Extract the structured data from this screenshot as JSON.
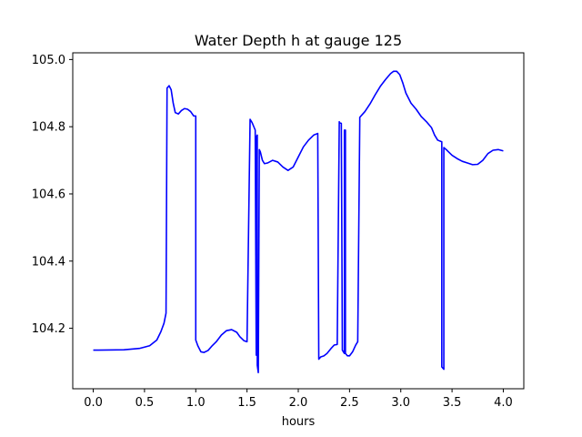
{
  "chart_data": {
    "type": "line",
    "title": "Water Depth h at gauge 125",
    "xlabel": "hours",
    "ylabel": "",
    "xlim": [
      -0.2,
      4.2
    ],
    "ylim": [
      104.02,
      105.02
    ],
    "xticks": [
      0.0,
      0.5,
      1.0,
      1.5,
      2.0,
      2.5,
      3.0,
      3.5,
      4.0
    ],
    "xtick_labels": [
      "0.0",
      "0.5",
      "1.0",
      "1.5",
      "2.0",
      "2.5",
      "3.0",
      "3.5",
      "4.0"
    ],
    "yticks": [
      104.2,
      104.4,
      104.6,
      104.8,
      105.0
    ],
    "ytick_labels": [
      "104.2",
      "104.4",
      "104.6",
      "104.8",
      "105.0"
    ],
    "grid": false,
    "series": [
      {
        "color": "#0000ff",
        "x": [
          0.0,
          0.05,
          0.3,
          0.45,
          0.55,
          0.62,
          0.66,
          0.69,
          0.71,
          0.72,
          0.72,
          0.74,
          0.76,
          0.78,
          0.8,
          0.83,
          0.86,
          0.89,
          0.92,
          0.95,
          0.98,
          1.0,
          1.0,
          1.02,
          1.05,
          1.08,
          1.12,
          1.16,
          1.2,
          1.25,
          1.3,
          1.35,
          1.4,
          1.43,
          1.47,
          1.5,
          1.53,
          1.53,
          1.55,
          1.58,
          1.59,
          1.59,
          1.6,
          1.6,
          1.61,
          1.62,
          1.63,
          1.65,
          1.67,
          1.7,
          1.75,
          1.8,
          1.85,
          1.9,
          1.95,
          2.0,
          2.05,
          2.1,
          2.15,
          2.19,
          2.2,
          2.22,
          2.25,
          2.28,
          2.32,
          2.35,
          2.38,
          2.4,
          2.4,
          2.42,
          2.43,
          2.44,
          2.45,
          2.45,
          2.46,
          2.46,
          2.48,
          2.5,
          2.53,
          2.56,
          2.58,
          2.6,
          2.6,
          2.65,
          2.7,
          2.75,
          2.8,
          2.85,
          2.9,
          2.93,
          2.96,
          2.99,
          3.02,
          3.05,
          3.1,
          3.15,
          3.2,
          3.25,
          3.3,
          3.33,
          3.36,
          3.4,
          3.4,
          3.42,
          3.42,
          3.45,
          3.5,
          3.55,
          3.6,
          3.65,
          3.7,
          3.75,
          3.8,
          3.85,
          3.9,
          3.95,
          4.0
        ],
        "y": [
          104.135,
          104.135,
          104.136,
          104.14,
          104.148,
          104.165,
          104.19,
          104.215,
          104.245,
          104.915,
          104.915,
          104.922,
          104.91,
          104.87,
          104.842,
          104.838,
          104.848,
          104.854,
          104.852,
          104.845,
          104.832,
          104.832,
          104.165,
          104.148,
          104.13,
          104.128,
          104.134,
          104.148,
          104.16,
          104.18,
          104.193,
          104.196,
          104.188,
          104.175,
          104.163,
          104.16,
          104.822,
          104.822,
          104.812,
          104.79,
          104.12,
          104.77,
          104.775,
          104.09,
          104.068,
          104.732,
          104.725,
          104.7,
          104.69,
          104.692,
          104.7,
          104.695,
          104.68,
          104.67,
          104.68,
          104.71,
          104.74,
          104.76,
          104.775,
          104.78,
          104.108,
          104.115,
          104.118,
          104.125,
          104.14,
          104.15,
          104.152,
          104.815,
          104.812,
          104.81,
          104.135,
          104.13,
          104.125,
          104.79,
          104.79,
          104.125,
          104.118,
          104.118,
          104.13,
          104.15,
          104.16,
          104.82,
          104.828,
          104.845,
          104.868,
          104.895,
          104.92,
          104.94,
          104.958,
          104.965,
          104.965,
          104.955,
          104.93,
          104.9,
          104.87,
          104.852,
          104.83,
          104.815,
          104.797,
          104.775,
          104.76,
          104.755,
          104.085,
          104.078,
          104.738,
          104.73,
          104.715,
          104.705,
          104.697,
          104.692,
          104.687,
          104.688,
          104.7,
          104.72,
          104.73,
          104.732,
          104.728
        ]
      }
    ]
  }
}
